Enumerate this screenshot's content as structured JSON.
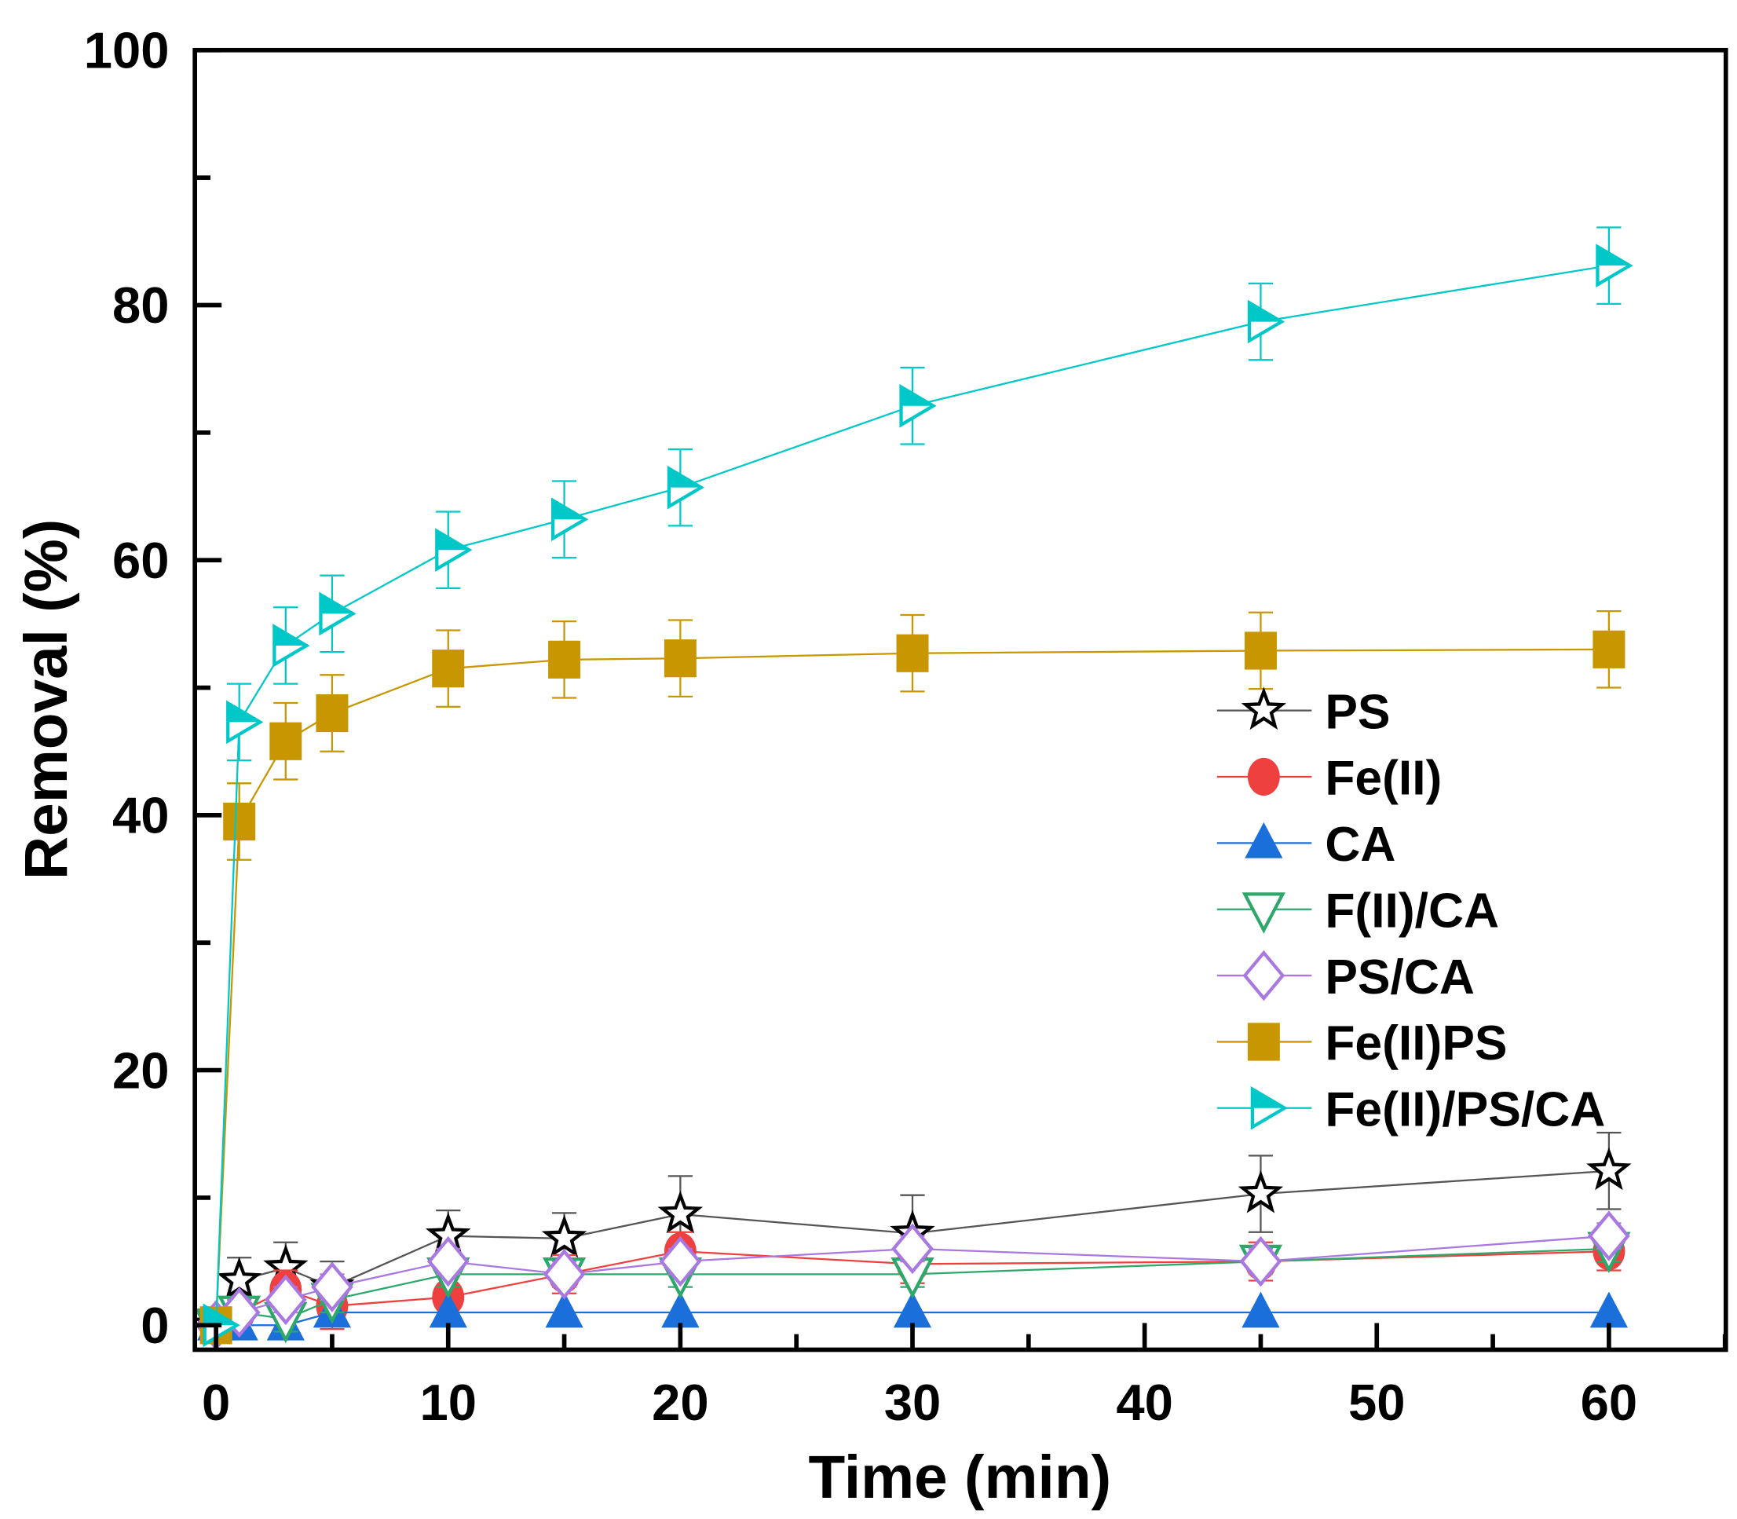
{
  "chart_data": {
    "type": "line",
    "title": "",
    "xlabel": "Time (min)",
    "ylabel": "Removal (%)",
    "xlim": [
      -1,
      65
    ],
    "ylim": [
      -2,
      100
    ],
    "xticks": [
      0,
      10,
      20,
      30,
      40,
      50,
      60
    ],
    "yticks": [
      0,
      20,
      40,
      60,
      80,
      100
    ],
    "grid": false,
    "legend_position": "right",
    "x": [
      0,
      1,
      3,
      5,
      10,
      15,
      20,
      30,
      45,
      60
    ],
    "series": [
      {
        "name": "PS",
        "color": "#000000",
        "line_color": "#555555",
        "marker": "star-open",
        "values": [
          0,
          3.5,
          4.5,
          3.0,
          7.0,
          6.8,
          8.7,
          7.2,
          10.3,
          12.1
        ],
        "errors": [
          0,
          1.8,
          2.0,
          2.0,
          2.0,
          2.0,
          3.0,
          3.0,
          3.0,
          3.0
        ]
      },
      {
        "name": "Fe(II)",
        "color": "#EF4040",
        "line_color": "#EF4040",
        "marker": "circle",
        "values": [
          0,
          1.0,
          2.8,
          1.5,
          2.2,
          4.0,
          5.8,
          4.8,
          5.0,
          5.8
        ],
        "errors": [
          0,
          1.0,
          1.5,
          1.8,
          2.0,
          1.5,
          1.5,
          1.5,
          1.5,
          1.5
        ]
      },
      {
        "name": "CA",
        "color": "#1A6FDB",
        "line_color": "#1A6FDB",
        "marker": "triangle-up",
        "values": [
          0,
          0,
          0,
          1.0,
          1.0,
          1.0,
          1.0,
          1.0,
          1.0,
          1.0
        ],
        "errors": [
          0,
          0,
          0,
          0,
          0,
          0,
          0,
          0,
          0,
          0
        ]
      },
      {
        "name": "F(II)/CA",
        "color": "#2EA86A",
        "line_color": "#2EA86A",
        "marker": "triangle-down-open",
        "values": [
          0,
          1.0,
          0.5,
          2.0,
          4.0,
          4.0,
          4.0,
          4.0,
          5.0,
          6.0
        ],
        "errors": [
          0,
          0.5,
          1.0,
          1.0,
          1.0,
          1.0,
          1.0,
          1.0,
          1.0,
          1.0
        ]
      },
      {
        "name": "PS/CA",
        "color": "#A978E0",
        "line_color": "#A978E0",
        "marker": "diamond-open",
        "values": [
          0,
          1.0,
          2.0,
          3.0,
          5.0,
          4.0,
          5.0,
          6.0,
          5.0,
          7.0
        ],
        "errors": [
          0,
          1.0,
          1.0,
          1.0,
          1.0,
          1.0,
          1.0,
          1.0,
          1.0,
          1.0
        ]
      },
      {
        "name": "Fe(II)PS",
        "color": "#C89600",
        "line_color": "#C89600",
        "marker": "square",
        "values": [
          0,
          39.5,
          45.8,
          48.0,
          51.5,
          52.2,
          52.3,
          52.7,
          52.9,
          53.0
        ],
        "errors": [
          0,
          3.0,
          3.0,
          3.0,
          3.0,
          3.0,
          3.0,
          3.0,
          3.0,
          3.0
        ]
      },
      {
        "name": "Fe(II)/PS/CA",
        "color": "#00C8C8",
        "line_color": "#00C8C8",
        "marker": "triangle-right",
        "values": [
          0,
          47.3,
          53.3,
          55.8,
          60.8,
          63.2,
          65.7,
          72.1,
          78.7,
          83.1
        ],
        "errors": [
          0,
          3.0,
          3.0,
          3.0,
          3.0,
          3.0,
          3.0,
          3.0,
          3.0,
          3.0
        ]
      }
    ]
  }
}
